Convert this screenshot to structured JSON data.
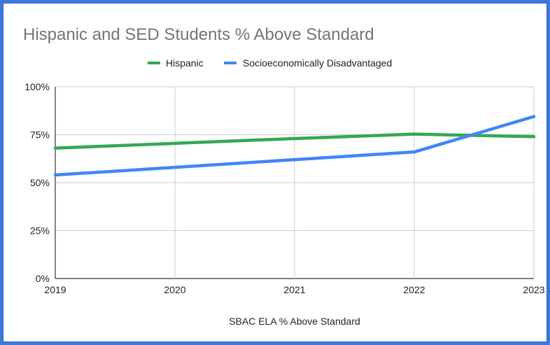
{
  "colors": {
    "frame": "#3b78e0",
    "grid": "#cccccc",
    "axis": "#333333"
  },
  "chart_data": {
    "type": "line",
    "title": "Hispanic and SED Students % Above Standard",
    "xlabel": "SBAC ELA  % Above Standard",
    "ylabel": "",
    "x": [
      "2019",
      "2020",
      "2021",
      "2022",
      "2023"
    ],
    "ylim": [
      0,
      100
    ],
    "y_ticks": [
      "0%",
      "25%",
      "50%",
      "75%",
      "100%"
    ],
    "grid": true,
    "legend_position": "top",
    "series": [
      {
        "name": "Hispanic",
        "color": "#34a853",
        "values": [
          68,
          70.5,
          73,
          75.3,
          74
        ]
      },
      {
        "name": "Socioeconomically Disadvantaged",
        "color": "#4285f4",
        "values": [
          54,
          58,
          62,
          66,
          84.5
        ]
      }
    ]
  }
}
